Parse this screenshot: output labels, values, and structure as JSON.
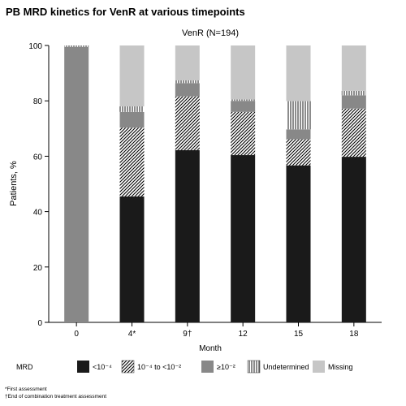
{
  "title": "PB MRD kinetics for VenR at various timepoints",
  "chart_data": {
    "type": "bar",
    "stacked": true,
    "subtitle": "VenR (N=194)",
    "xlabel": "Month",
    "ylabel": "Patients, %",
    "ylim": [
      0,
      100
    ],
    "yticks": [
      0,
      20,
      40,
      60,
      80,
      100
    ],
    "categories": [
      "0",
      "4*",
      "9†",
      "12",
      "15",
      "18"
    ],
    "legend_title": "MRD",
    "legend_position": "bottom",
    "series": [
      {
        "name": "<10⁻⁴",
        "pattern": "solid-dark",
        "color": "#1a1a1a",
        "values": [
          0,
          45.5,
          62.2,
          60.4,
          56.7,
          59.8
        ]
      },
      {
        "name": "10⁻⁴ to <10⁻²",
        "pattern": "diagonal-hatch",
        "color": "#ffffff",
        "values": [
          0,
          24.8,
          19.4,
          15.6,
          9.4,
          17.4
        ]
      },
      {
        "name": "≥10⁻²",
        "pattern": "solid-medium",
        "color": "#888888",
        "values": [
          99.5,
          5.7,
          4.8,
          4.0,
          3.6,
          4.8
        ]
      },
      {
        "name": "Undetermined",
        "pattern": "vertical-lines",
        "color": "#ffffff",
        "values": [
          0.5,
          2.0,
          1.0,
          0.5,
          10.2,
          1.6
        ]
      },
      {
        "name": "Missing",
        "pattern": "solid-light",
        "color": "#c6c6c6",
        "values": [
          0,
          22.0,
          12.6,
          19.5,
          20.1,
          16.4
        ]
      }
    ]
  },
  "footnotes": [
    "*First assessment",
    "†End of combination treatment assessment"
  ]
}
